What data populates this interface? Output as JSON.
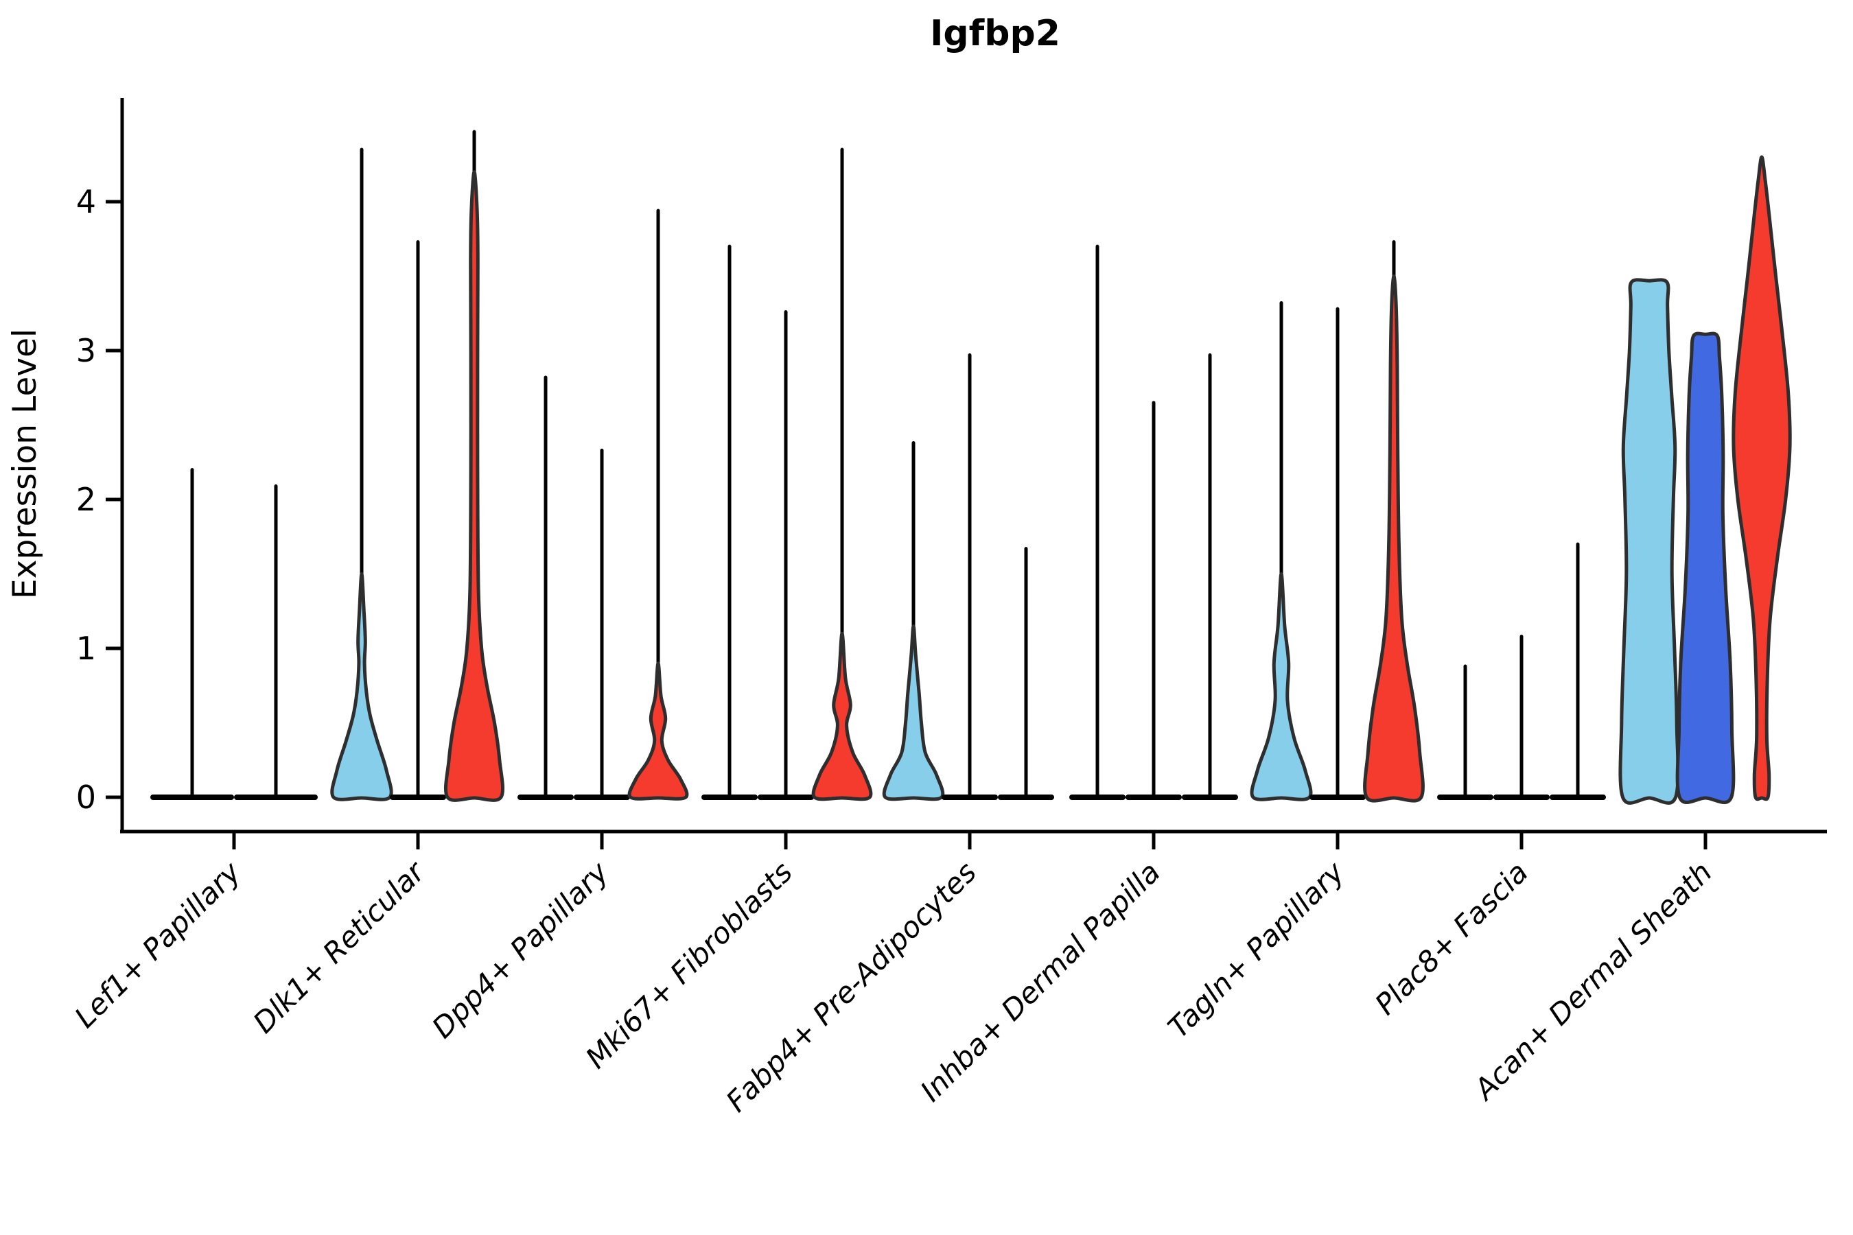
{
  "title": "Igfbp2",
  "chart_data": {
    "type": "violin",
    "title": "Igfbp2",
    "xlabel": "",
    "ylabel": "Expression Level",
    "ylim": [
      0,
      4.7
    ],
    "yticks": [
      0,
      1,
      2,
      3,
      4
    ],
    "grid": false,
    "legend": "none",
    "palette": {
      "skyblue": "#87CEEB",
      "royalblue": "#4169E1",
      "red": "#F43B2D",
      "outline": "#2E2E2E",
      "axis": "#000000"
    },
    "categories": [
      "Lef1+ Papillary",
      "Dlk1+ Reticular",
      "Dpp4+ Papillary",
      "Mki67+ Fibroblasts",
      "Fabp4+ Pre-Adipocytes",
      "Inhba+ Dermal Papilla",
      "Tagln+ Papillary",
      "Plac8+ Fascia",
      "Acan+ Dermal Sheath"
    ],
    "groups": [
      {
        "category": "Lef1+ Papillary",
        "violins": [
          {
            "color": "skyblue",
            "max": 2.2,
            "flat": true
          },
          {
            "color": "royalblue",
            "max": 2.09,
            "flat": true
          }
        ]
      },
      {
        "category": "Dlk1+ Reticular",
        "violins": [
          {
            "color": "skyblue",
            "max": 4.35,
            "flat": false,
            "profile": [
              [
                0,
                1.0
              ],
              [
                0.18,
                0.88
              ],
              [
                0.38,
                0.55
              ],
              [
                0.55,
                0.3
              ],
              [
                0.72,
                0.16
              ],
              [
                0.9,
                0.1
              ],
              [
                1.05,
                0.13
              ],
              [
                1.25,
                0.08
              ],
              [
                1.5,
                0.04
              ]
            ]
          },
          {
            "color": "royalblue",
            "max": 3.73,
            "flat": true
          },
          {
            "color": "red",
            "max": 4.47,
            "flat": false,
            "profile": [
              [
                0,
                0.95
              ],
              [
                0.25,
                0.9
              ],
              [
                0.5,
                0.72
              ],
              [
                0.75,
                0.45
              ],
              [
                1.0,
                0.26
              ],
              [
                1.4,
                0.15
              ],
              [
                2.2,
                0.12
              ],
              [
                3.0,
                0.12
              ],
              [
                3.6,
                0.13
              ],
              [
                3.95,
                0.1
              ],
              [
                4.2,
                0.05
              ]
            ]
          }
        ]
      },
      {
        "category": "Dpp4+ Papillary",
        "violins": [
          {
            "color": "skyblue",
            "max": 2.82,
            "flat": true
          },
          {
            "color": "royalblue",
            "max": 2.33,
            "flat": true
          },
          {
            "color": "red",
            "max": 3.94,
            "flat": false,
            "profile": [
              [
                0,
                0.98
              ],
              [
                0.12,
                0.8
              ],
              [
                0.25,
                0.35
              ],
              [
                0.38,
                0.13
              ],
              [
                0.53,
                0.26
              ],
              [
                0.68,
                0.1
              ],
              [
                0.9,
                0.05
              ]
            ]
          }
        ]
      },
      {
        "category": "Mki67+ Fibroblasts",
        "violins": [
          {
            "color": "skyblue",
            "max": 3.7,
            "flat": true
          },
          {
            "color": "royalblue",
            "max": 3.26,
            "flat": true
          },
          {
            "color": "red",
            "max": 4.35,
            "flat": false,
            "profile": [
              [
                0,
                0.98
              ],
              [
                0.15,
                0.8
              ],
              [
                0.3,
                0.38
              ],
              [
                0.48,
                0.16
              ],
              [
                0.62,
                0.3
              ],
              [
                0.8,
                0.12
              ],
              [
                1.1,
                0.06
              ]
            ]
          }
        ]
      },
      {
        "category": "Fabp4+ Pre-Adipocytes",
        "violins": [
          {
            "color": "skyblue",
            "max": 2.38,
            "flat": false,
            "profile": [
              [
                0,
                1.0
              ],
              [
                0.15,
                0.82
              ],
              [
                0.3,
                0.42
              ],
              [
                0.5,
                0.28
              ],
              [
                0.7,
                0.2
              ],
              [
                0.95,
                0.08
              ],
              [
                1.15,
                0.04
              ]
            ]
          },
          {
            "color": "royalblue",
            "max": 2.97,
            "flat": true
          },
          {
            "color": "red",
            "max": 1.67,
            "flat": true
          }
        ]
      },
      {
        "category": "Inhba+ Dermal Papilla",
        "violins": [
          {
            "color": "skyblue",
            "max": 3.7,
            "flat": true
          },
          {
            "color": "royalblue",
            "max": 2.65,
            "flat": true
          },
          {
            "color": "red",
            "max": 2.97,
            "flat": true
          }
        ]
      },
      {
        "category": "Tagln+ Papillary",
        "violins": [
          {
            "color": "skyblue",
            "max": 3.32,
            "flat": false,
            "profile": [
              [
                0,
                1.0
              ],
              [
                0.18,
                0.85
              ],
              [
                0.4,
                0.45
              ],
              [
                0.65,
                0.22
              ],
              [
                0.9,
                0.26
              ],
              [
                1.15,
                0.12
              ],
              [
                1.5,
                0.05
              ]
            ]
          },
          {
            "color": "royalblue",
            "max": 3.28,
            "flat": true
          },
          {
            "color": "red",
            "max": 3.73,
            "flat": false,
            "profile": [
              [
                0,
                0.97
              ],
              [
                0.3,
                0.92
              ],
              [
                0.6,
                0.74
              ],
              [
                0.9,
                0.47
              ],
              [
                1.2,
                0.28
              ],
              [
                1.7,
                0.18
              ],
              [
                2.3,
                0.14
              ],
              [
                2.9,
                0.12
              ],
              [
                3.3,
                0.08
              ],
              [
                3.5,
                0.04
              ]
            ]
          }
        ]
      },
      {
        "category": "Plac8+ Fascia",
        "violins": [
          {
            "color": "skyblue",
            "max": 0.88,
            "flat": true
          },
          {
            "color": "royalblue",
            "max": 1.08,
            "flat": true
          },
          {
            "color": "red",
            "max": 1.7,
            "flat": true
          }
        ]
      },
      {
        "category": "Acan+ Dermal Sheath",
        "violins": [
          {
            "color": "skyblue",
            "max": 3.46,
            "flat": false,
            "truncated": true,
            "profile": [
              [
                0,
                0.94
              ],
              [
                0.5,
                0.98
              ],
              [
                1.0,
                0.9
              ],
              [
                1.5,
                0.81
              ],
              [
                2.0,
                0.86
              ],
              [
                2.35,
                0.92
              ],
              [
                2.7,
                0.8
              ],
              [
                3.0,
                0.7
              ],
              [
                3.3,
                0.65
              ],
              [
                3.46,
                0.63
              ]
            ]
          },
          {
            "color": "royalblue",
            "max": 3.1,
            "flat": false,
            "truncated": true,
            "profile": [
              [
                0,
                0.92
              ],
              [
                0.45,
                0.94
              ],
              [
                0.9,
                0.88
              ],
              [
                1.4,
                0.72
              ],
              [
                1.9,
                0.62
              ],
              [
                2.3,
                0.63
              ],
              [
                2.7,
                0.58
              ],
              [
                2.95,
                0.5
              ],
              [
                3.1,
                0.42
              ]
            ]
          },
          {
            "color": "red",
            "max": 4.3,
            "flat": false,
            "profile": [
              [
                0,
                0.22
              ],
              [
                0.15,
                0.26
              ],
              [
                0.4,
                0.18
              ],
              [
                0.8,
                0.2
              ],
              [
                1.2,
                0.3
              ],
              [
                1.6,
                0.55
              ],
              [
                2.0,
                0.85
              ],
              [
                2.35,
                1.0
              ],
              [
                2.7,
                0.95
              ],
              [
                3.1,
                0.74
              ],
              [
                3.5,
                0.5
              ],
              [
                3.9,
                0.27
              ],
              [
                4.15,
                0.12
              ],
              [
                4.3,
                0.02
              ]
            ]
          }
        ]
      }
    ]
  }
}
